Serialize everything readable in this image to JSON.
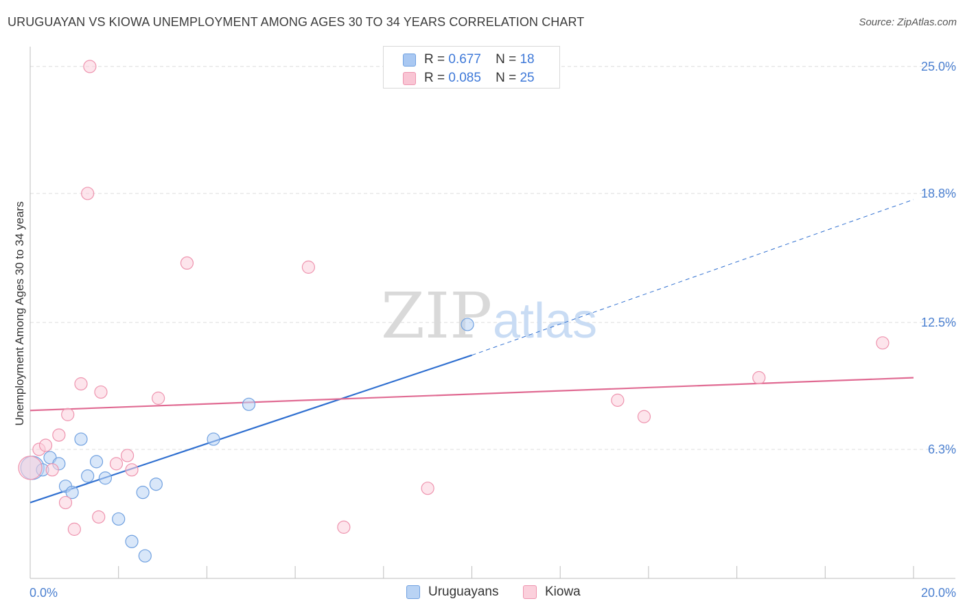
{
  "title": "URUGUAYAN VS KIOWA UNEMPLOYMENT AMONG AGES 30 TO 34 YEARS CORRELATION CHART",
  "source": "Source: ZipAtlas.com",
  "watermark": {
    "zip": "ZIP",
    "atlas": "atlas"
  },
  "legend": {
    "r_label": "R =",
    "n_label": "N =",
    "rows": [
      {
        "r": "0.677",
        "n": "18",
        "color": "#a9c8f2",
        "border": "#6fa0e0"
      },
      {
        "r": "0.085",
        "n": "25",
        "color": "#f9c5d4",
        "border": "#ee93ae"
      }
    ]
  },
  "bottom_legend": [
    {
      "label": "Uruguayans",
      "color": "#b9d3f4",
      "border": "#6fa0e0"
    },
    {
      "label": "Kiowa",
      "color": "#fbd0dc",
      "border": "#ee93ae"
    }
  ],
  "chart_data": {
    "type": "scatter",
    "title": "URUGUAYAN VS KIOWA UNEMPLOYMENT AMONG AGES 30 TO 34 YEARS CORRELATION CHART",
    "xlabel": "",
    "ylabel": "Unemployment Among Ages 30 to 34 years",
    "xlim": [
      0,
      20
    ],
    "ylim": [
      0,
      25.6
    ],
    "x_tick_labels": [
      "0.0%",
      "20.0%"
    ],
    "y_ticks": [
      6.3,
      12.5,
      18.8,
      25.0
    ],
    "y_tick_labels": [
      "6.3%",
      "12.5%",
      "18.8%",
      "25.0%"
    ],
    "series": [
      {
        "name": "Uruguayans",
        "color": "#6fa0e0",
        "fill": "#b9d3f4",
        "line_color": "#2f6fd0",
        "points": [
          {
            "x": 0.05,
            "y": 5.4,
            "size": "large"
          },
          {
            "x": 0.28,
            "y": 5.3
          },
          {
            "x": 0.45,
            "y": 5.9
          },
          {
            "x": 0.65,
            "y": 5.6
          },
          {
            "x": 0.8,
            "y": 4.5
          },
          {
            "x": 0.95,
            "y": 4.2
          },
          {
            "x": 1.15,
            "y": 6.8
          },
          {
            "x": 1.3,
            "y": 5.0
          },
          {
            "x": 1.5,
            "y": 5.7
          },
          {
            "x": 1.7,
            "y": 4.9
          },
          {
            "x": 2.0,
            "y": 2.9
          },
          {
            "x": 2.3,
            "y": 1.8
          },
          {
            "x": 2.6,
            "y": 1.1
          },
          {
            "x": 2.55,
            "y": 4.2
          },
          {
            "x": 2.85,
            "y": 4.6
          },
          {
            "x": 4.15,
            "y": 6.8
          },
          {
            "x": 4.95,
            "y": 8.5
          },
          {
            "x": 9.9,
            "y": 12.4
          }
        ],
        "trend": {
          "x0": 0,
          "y0": 3.7,
          "x1": 10.0,
          "y1": 10.9,
          "dash_to_x": 20.0,
          "dash_to_y": 18.5
        }
      },
      {
        "name": "Kiowa",
        "color": "#ee93ae",
        "fill": "#fbd0dc",
        "line_color": "#e06a92",
        "points": [
          {
            "x": 0.0,
            "y": 5.4,
            "size": "large"
          },
          {
            "x": 0.2,
            "y": 6.3
          },
          {
            "x": 0.35,
            "y": 6.5
          },
          {
            "x": 0.5,
            "y": 5.3
          },
          {
            "x": 0.65,
            "y": 7.0
          },
          {
            "x": 0.8,
            "y": 3.7
          },
          {
            "x": 0.85,
            "y": 8.0
          },
          {
            "x": 1.0,
            "y": 2.4
          },
          {
            "x": 1.15,
            "y": 9.5
          },
          {
            "x": 1.35,
            "y": 25.0
          },
          {
            "x": 1.3,
            "y": 18.8
          },
          {
            "x": 1.55,
            "y": 3.0
          },
          {
            "x": 1.6,
            "y": 9.1
          },
          {
            "x": 1.95,
            "y": 5.6
          },
          {
            "x": 2.2,
            "y": 6.0
          },
          {
            "x": 2.3,
            "y": 5.3
          },
          {
            "x": 2.9,
            "y": 8.8
          },
          {
            "x": 3.55,
            "y": 15.4
          },
          {
            "x": 6.3,
            "y": 15.2
          },
          {
            "x": 7.1,
            "y": 2.5
          },
          {
            "x": 9.0,
            "y": 4.4
          },
          {
            "x": 13.3,
            "y": 8.7
          },
          {
            "x": 13.9,
            "y": 7.9
          },
          {
            "x": 16.5,
            "y": 9.8
          },
          {
            "x": 19.3,
            "y": 11.5
          }
        ],
        "trend": {
          "x0": 0,
          "y0": 8.2,
          "x1": 20.0,
          "y1": 9.8
        }
      }
    ]
  }
}
